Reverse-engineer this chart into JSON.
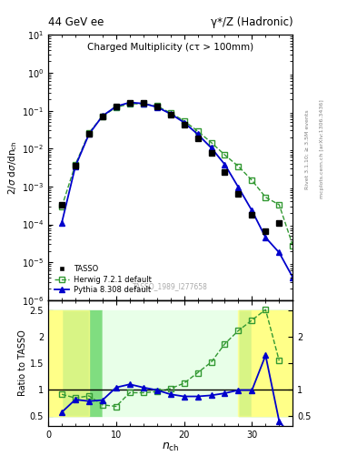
{
  "title_left": "44 GeV ee",
  "title_right": "γ*/Z (Hadronic)",
  "plot_title": "Charged Multiplicity (cτ > 100mm)",
  "ylabel_main": "2/σ dσ/dn_{ch}",
  "ylabel_ratio": "Ratio to TASSO",
  "right_label_top": "Rivet 3.1.10; ≥ 3.5M events",
  "right_label_bottom": "mcplots.cern.ch [arXiv:1306.3436]",
  "watermark": "TASSO_1989_I277658",
  "tasso_x": [
    2,
    4,
    6,
    8,
    10,
    12,
    14,
    16,
    18,
    20,
    22,
    24,
    26,
    28,
    30,
    32,
    34
  ],
  "tasso_y": [
    0.00032,
    0.0035,
    0.025,
    0.07,
    0.128,
    0.165,
    0.158,
    0.128,
    0.078,
    0.043,
    0.019,
    0.0075,
    0.0024,
    0.00065,
    0.00018,
    6.5e-05,
    0.00011
  ],
  "herwig_x": [
    2,
    4,
    6,
    8,
    10,
    12,
    14,
    16,
    18,
    20,
    22,
    24,
    26,
    28,
    30,
    32,
    34,
    36
  ],
  "herwig_y": [
    0.00029,
    0.0038,
    0.026,
    0.072,
    0.122,
    0.152,
    0.152,
    0.133,
    0.088,
    0.054,
    0.029,
    0.0145,
    0.0068,
    0.0034,
    0.00145,
    0.00052,
    0.00033,
    2.8e-05
  ],
  "pythia_x": [
    2,
    4,
    6,
    8,
    10,
    12,
    14,
    16,
    18,
    20,
    22,
    24,
    26,
    28,
    30,
    32,
    34,
    36
  ],
  "pythia_y": [
    0.00011,
    0.0034,
    0.024,
    0.073,
    0.13,
    0.165,
    0.155,
    0.125,
    0.083,
    0.049,
    0.024,
    0.0105,
    0.0038,
    0.00095,
    0.00023,
    4.5e-05,
    1.8e-05,
    4e-06
  ],
  "ratio_herwig_x": [
    2,
    4,
    6,
    8,
    10,
    12,
    14,
    16,
    18,
    20,
    22,
    24,
    26,
    28,
    30,
    32,
    34
  ],
  "ratio_herwig_y": [
    0.91,
    0.84,
    0.88,
    0.71,
    0.68,
    0.94,
    0.94,
    0.96,
    1.02,
    1.12,
    1.32,
    1.52,
    1.87,
    2.12,
    2.32,
    2.52,
    1.55
  ],
  "ratio_pythia_x": [
    2,
    4,
    6,
    8,
    10,
    12,
    14,
    16,
    18,
    20,
    22,
    24,
    26,
    28,
    30,
    32,
    34,
    36
  ],
  "ratio_pythia_y": [
    0.57,
    0.81,
    0.78,
    0.8,
    1.04,
    1.1,
    1.04,
    0.99,
    0.91,
    0.87,
    0.87,
    0.89,
    0.93,
    0.99,
    0.99,
    1.65,
    0.4,
    0.08
  ],
  "ylim_main": [
    1e-06,
    10
  ],
  "ylim_ratio": [
    0.3,
    2.7
  ],
  "xlim": [
    0,
    36
  ],
  "tasso_color": "#000000",
  "herwig_color": "#339933",
  "pythia_color": "#0000cc",
  "green_band_color": "#80dd80",
  "yellow_band_color": "#ffff88",
  "green_band_inner_color": "#ccffcc",
  "yellow_band_inner_color": "#ffffcc"
}
